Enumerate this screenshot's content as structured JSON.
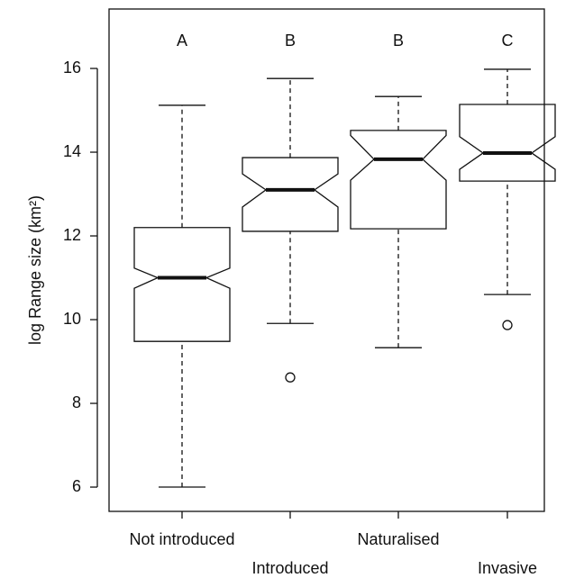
{
  "chart_data": {
    "type": "boxplot",
    "y_label": "log Range size (km²)",
    "categories": [
      "Not introduced",
      "Introduced",
      "Naturalised",
      "Invasive"
    ],
    "group_letters": [
      "A",
      "B",
      "B",
      "C"
    ],
    "min": [
      6.0,
      9.91,
      9.33,
      10.6
    ],
    "q1": [
      9.48,
      12.11,
      12.17,
      13.31
    ],
    "median": [
      11.0,
      13.1,
      13.83,
      13.98
    ],
    "q3": [
      12.2,
      13.87,
      14.52,
      15.14
    ],
    "max": [
      15.12,
      15.76,
      15.33,
      15.98
    ],
    "notch_low": [
      10.75,
      12.69,
      13.33,
      13.59
    ],
    "notch_high": [
      11.23,
      13.48,
      14.4,
      14.37
    ],
    "outliers": [
      [],
      [
        8.62
      ],
      [],
      [
        9.87
      ]
    ],
    "ylim": [
      5.42,
      17.42
    ],
    "yticks": [
      6,
      8,
      10,
      12,
      14,
      16
    ]
  }
}
